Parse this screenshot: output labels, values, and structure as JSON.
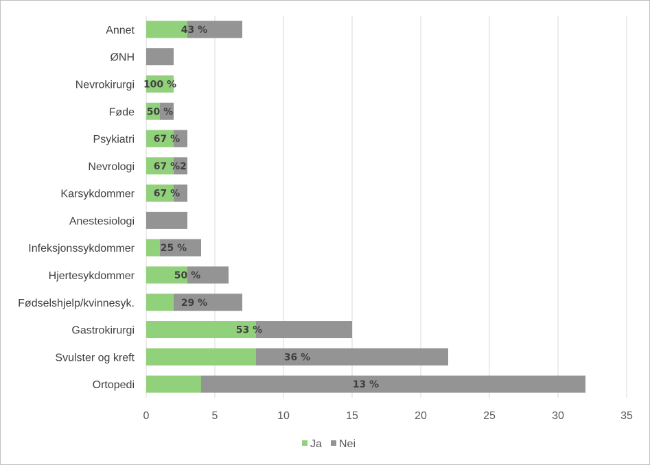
{
  "chart_data": {
    "type": "bar",
    "orientation": "horizontal",
    "stacked": true,
    "categories": [
      "Annet",
      "ØNH",
      "Nevrokirurgi",
      "Føde",
      "Psykiatri",
      "Nevrologi",
      "Karsykdommer",
      "Anestesiologi",
      "Infeksjonssykdommer",
      "Hjertesykdommer",
      "Fødselshjelp/kvinnesyk.",
      "Gastrokirurgi",
      "Svulster og kreft",
      "Ortopedi"
    ],
    "series": [
      {
        "name": "Ja",
        "color": "#92d17c",
        "values": [
          3,
          0,
          2,
          1,
          2,
          2,
          2,
          0,
          1,
          3,
          2,
          8,
          8,
          4
        ]
      },
      {
        "name": "Nei",
        "color": "#949494",
        "values": [
          4,
          2,
          0,
          1,
          1,
          1,
          1,
          3,
          3,
          3,
          5,
          7,
          14,
          28
        ]
      }
    ],
    "data_labels": [
      "43 %",
      "",
      "100 %",
      "50 %",
      "67 %",
      "67 %",
      "67 %",
      "",
      "25 %",
      "50 %",
      "29 %",
      "53 %",
      "36 %",
      "13 %"
    ],
    "extra_labels": [
      {
        "category": "Nevrologi",
        "text": "2"
      }
    ],
    "xlim": [
      0,
      35
    ],
    "xticks": [
      0,
      5,
      10,
      15,
      20,
      25,
      30,
      35
    ],
    "grid": "vertical",
    "legend": "bottom-center",
    "title": "",
    "xlabel": "",
    "ylabel": ""
  }
}
